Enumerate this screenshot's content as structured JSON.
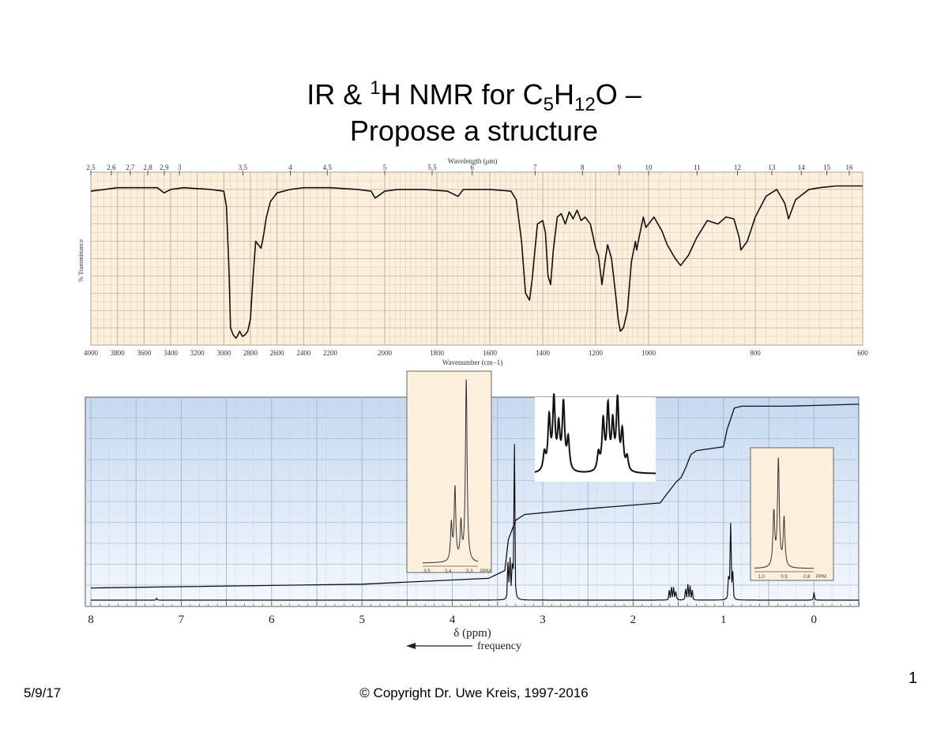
{
  "slide": {
    "title_line1": {
      "a": "IR & ",
      "sup": "1",
      "b": "H NMR for C",
      "sub1": "5",
      "c": "H",
      "sub2": "12",
      "d": "O –"
    },
    "title_line2": "Propose a structure",
    "date": "5/9/17",
    "copyright": "© Copyright Dr. Uwe Kreis, 1997-2016",
    "page_number": "1"
  },
  "chart_data": [
    {
      "type": "line",
      "xlabel": "Wavenumber (cm−1)",
      "x2label": "Wavelength (μm)",
      "ylabel": "% Transmittance",
      "xlim": [
        4000,
        600
      ],
      "ylim": [
        0,
        100
      ],
      "grid": true,
      "background": "#fcf0dc",
      "x_ticks": [
        "4000",
        "3800",
        "3600",
        "3400",
        "3200",
        "3000",
        "2800",
        "2600",
        "2400",
        "2200",
        "2000",
        "1800",
        "1600",
        "1400",
        "1200",
        "1000",
        "800",
        "600"
      ],
      "x2_ticks": [
        "2.5",
        "2.6",
        "2.7",
        "2.8",
        "2.9",
        "3",
        "3.5",
        "4",
        "4.5",
        "5",
        "5.5",
        "6",
        "7",
        "8",
        "9",
        "10",
        "11",
        "12",
        "13",
        "14",
        "15",
        "16"
      ],
      "series": [
        {
          "x": [
            4000,
            3900,
            3800,
            3700,
            3600,
            3500,
            3450,
            3400,
            3300,
            3100,
            3000,
            2980,
            2960,
            2950,
            2930,
            2910,
            2900,
            2880,
            2860,
            2840,
            2820,
            2800,
            2780,
            2760,
            2740,
            2720,
            2700,
            2680,
            2650,
            2600,
            2500,
            2400,
            2300,
            2200,
            2100,
            2050,
            2035,
            2000,
            1950,
            1850,
            1760,
            1720,
            1700,
            1600,
            1520,
            1500,
            1480,
            1465,
            1450,
            1440,
            1420,
            1400,
            1390,
            1380,
            1370,
            1360,
            1345,
            1330,
            1315,
            1300,
            1285,
            1270,
            1255,
            1240,
            1220,
            1200,
            1190,
            1176,
            1165,
            1155,
            1140,
            1125,
            1115,
            1107,
            1095,
            1080,
            1065,
            1050,
            1045,
            1035,
            1020,
            1010,
            1000,
            990,
            975,
            965,
            950,
            940,
            925,
            910,
            890,
            870,
            855,
            840,
            830,
            827,
            815,
            800,
            780,
            760,
            745,
            738,
            725,
            700,
            680,
            650,
            600
          ],
          "y": [
            89,
            90,
            91,
            91,
            91,
            91,
            88,
            90,
            91,
            90,
            89,
            80,
            40,
            10,
            6,
            4,
            5,
            8,
            5,
            6,
            8,
            15,
            40,
            60,
            58,
            56,
            64,
            74,
            83,
            88,
            90,
            91,
            91,
            91,
            90,
            89,
            85,
            89,
            90,
            90,
            89,
            86,
            90,
            90,
            89,
            84,
            60,
            30,
            26,
            38,
            70,
            72,
            65,
            40,
            35,
            55,
            74,
            76,
            70,
            77,
            73,
            78,
            72,
            74,
            70,
            56,
            52,
            35,
            48,
            58,
            50,
            30,
            15,
            8,
            10,
            20,
            48,
            60,
            55,
            63,
            74,
            68,
            70,
            74,
            66,
            58,
            50,
            46,
            52,
            62,
            72,
            70,
            74,
            73,
            62,
            55,
            60,
            74,
            86,
            90,
            82,
            73,
            84,
            90,
            91,
            92,
            92
          ]
        }
      ]
    },
    {
      "type": "line",
      "xlabel": "δ (ppm)",
      "direction_label": "frequency",
      "xlim": [
        8,
        -0.5
      ],
      "grid": true,
      "x_ticks": [
        "8",
        "7",
        "6",
        "5",
        "4",
        "3",
        "2",
        "1",
        "0"
      ],
      "spectrum_peaks": [
        {
          "ppm": 3.315,
          "height": 1.0
        },
        {
          "ppm": 3.34,
          "height": 0.22
        },
        {
          "ppm": 3.365,
          "height": 0.35
        },
        {
          "ppm": 3.385,
          "height": 0.18
        },
        {
          "ppm": 1.6,
          "height": 0.05
        },
        {
          "ppm": 1.575,
          "height": 0.07
        },
        {
          "ppm": 1.55,
          "height": 0.08
        },
        {
          "ppm": 1.525,
          "height": 0.06
        },
        {
          "ppm": 1.42,
          "height": 0.06
        },
        {
          "ppm": 1.395,
          "height": 0.08
        },
        {
          "ppm": 1.37,
          "height": 0.07
        },
        {
          "ppm": 1.345,
          "height": 0.05
        },
        {
          "ppm": 0.94,
          "height": 0.28
        },
        {
          "ppm": 0.92,
          "height": 0.38
        },
        {
          "ppm": 0.9,
          "height": 0.24
        },
        {
          "ppm": 0.0,
          "height": 0.05
        },
        {
          "ppm": 7.27,
          "height": 0.01
        }
      ],
      "integral": {
        "ppm": [
          8,
          5,
          3.6,
          3.42,
          3.38,
          3.3,
          3.2,
          2.5,
          1.7,
          1.62,
          1.52,
          1.47,
          1.42,
          1.36,
          1.3,
          1.0,
          0.96,
          0.88,
          0.8,
          0.3,
          -0.5
        ],
        "level": [
          0.03,
          0.05,
          0.08,
          0.12,
          0.28,
          0.38,
          0.41,
          0.44,
          0.47,
          0.52,
          0.58,
          0.6,
          0.65,
          0.72,
          0.74,
          0.76,
          0.85,
          0.96,
          0.97,
          0.97,
          0.98
        ]
      },
      "insets": [
        {
          "name": "methoxy-methylene",
          "ticks": [
            "3.5",
            "3.4",
            "3.3",
            "PPM"
          ],
          "xlim": [
            3.52,
            3.26
          ],
          "peaks": [
            {
              "ppm": 3.385,
              "height": 0.2
            },
            {
              "ppm": 3.368,
              "height": 0.4
            },
            {
              "ppm": 3.34,
              "height": 0.2
            },
            {
              "ppm": 3.315,
              "height": 1.0
            }
          ]
        },
        {
          "name": "methylene-multiplets",
          "ticks": [],
          "xlim": [
            1.66,
            1.28
          ],
          "peaks": [
            {
              "ppm": 1.63,
              "height": 0.25
            },
            {
              "ppm": 1.615,
              "height": 0.75
            },
            {
              "ppm": 1.6,
              "height": 1.0
            },
            {
              "ppm": 1.585,
              "height": 0.6
            },
            {
              "ppm": 1.57,
              "height": 0.95
            },
            {
              "ppm": 1.555,
              "height": 0.45
            },
            {
              "ppm": 1.46,
              "height": 0.25
            },
            {
              "ppm": 1.445,
              "height": 0.7
            },
            {
              "ppm": 1.43,
              "height": 0.9
            },
            {
              "ppm": 1.415,
              "height": 0.65
            },
            {
              "ppm": 1.4,
              "height": 1.0
            },
            {
              "ppm": 1.385,
              "height": 0.55
            },
            {
              "ppm": 1.37,
              "height": 0.2
            }
          ]
        },
        {
          "name": "methyl-triplet",
          "ticks": [
            "1.0",
            "0.9",
            "0.8",
            "PPM"
          ],
          "xlim": [
            1.03,
            0.77
          ],
          "peaks": [
            {
              "ppm": 0.945,
              "height": 0.5
            },
            {
              "ppm": 0.925,
              "height": 1.0
            },
            {
              "ppm": 0.9,
              "height": 0.45
            }
          ]
        }
      ]
    }
  ]
}
